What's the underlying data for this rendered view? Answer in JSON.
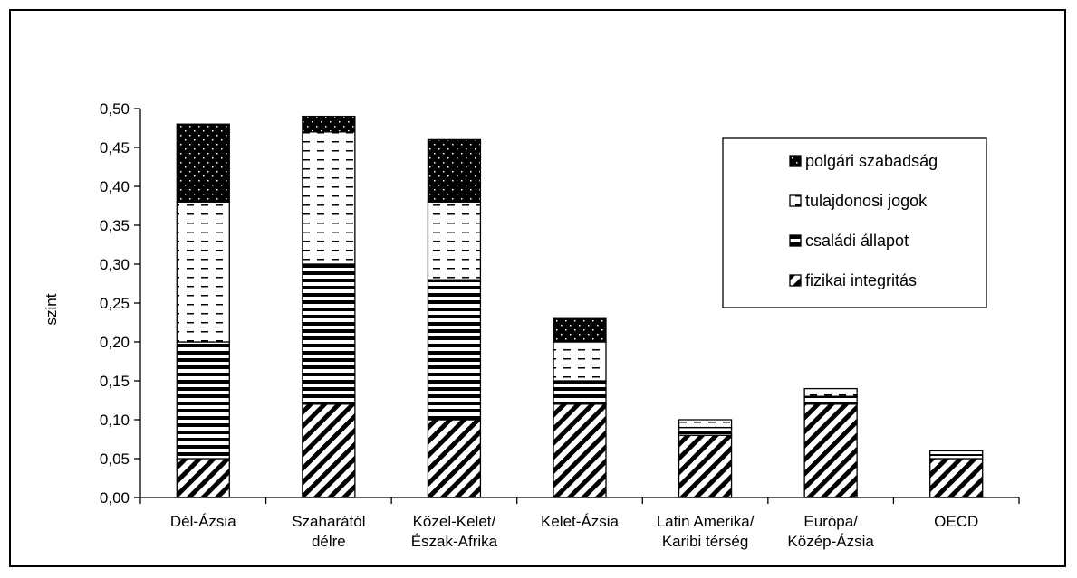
{
  "chart_data": {
    "type": "bar",
    "stacked": true,
    "title": "",
    "xlabel": "",
    "ylabel": "szint",
    "ylim": [
      0,
      0.5
    ],
    "yticks": [
      "0,00",
      "0,05",
      "0,10",
      "0,15",
      "0,20",
      "0,25",
      "0,30",
      "0,35",
      "0,40",
      "0,45",
      "0,50"
    ],
    "categories": [
      [
        "Dél-Ázsia"
      ],
      [
        "Szaharától",
        "délre"
      ],
      [
        "Közel-Kelet/",
        "Észak-Afrika"
      ],
      [
        "Kelet-Ázsia"
      ],
      [
        "Latin Amerika/",
        "Karibi térség"
      ],
      [
        "Európa/",
        "Közép-Ázsia"
      ],
      [
        "OECD"
      ]
    ],
    "series": [
      {
        "name": "fizikai integritás",
        "pattern": "diagonal",
        "values": [
          0.05,
          0.12,
          0.1,
          0.12,
          0.08,
          0.12,
          0.05
        ]
      },
      {
        "name": "családi állapot",
        "pattern": "horizontal",
        "values": [
          0.15,
          0.18,
          0.18,
          0.03,
          0.01,
          0.01,
          0.005
        ]
      },
      {
        "name": "tulajdonosi jogok",
        "pattern": "dashed",
        "values": [
          0.18,
          0.17,
          0.1,
          0.05,
          0.01,
          0.01,
          0.005
        ]
      },
      {
        "name": "polgári szabadság",
        "pattern": "dots",
        "values": [
          0.1,
          0.02,
          0.08,
          0.03,
          0.0,
          0.0,
          0.0
        ]
      }
    ],
    "legend": {
      "position": "top-right",
      "order": [
        "polgári szabadság",
        "tulajdonosi jogok",
        "családi állapot",
        "fizikai integritás"
      ]
    },
    "grid": false
  }
}
